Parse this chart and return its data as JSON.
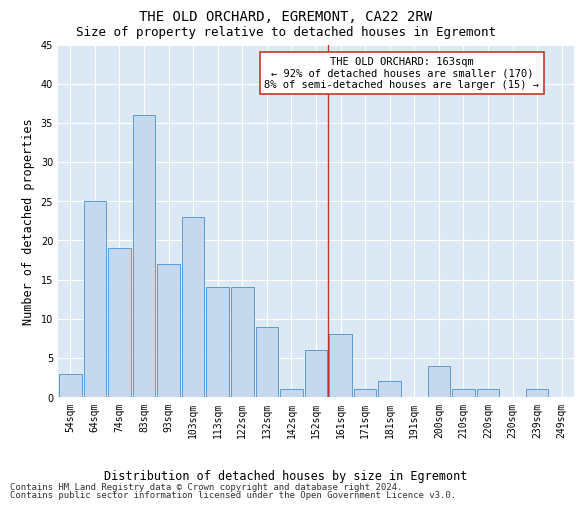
{
  "title": "THE OLD ORCHARD, EGREMONT, CA22 2RW",
  "subtitle": "Size of property relative to detached houses in Egremont",
  "xlabel": "Distribution of detached houses by size in Egremont",
  "ylabel": "Number of detached properties",
  "categories": [
    "54sqm",
    "64sqm",
    "74sqm",
    "83sqm",
    "93sqm",
    "103sqm",
    "113sqm",
    "122sqm",
    "132sqm",
    "142sqm",
    "152sqm",
    "161sqm",
    "171sqm",
    "181sqm",
    "191sqm",
    "200sqm",
    "210sqm",
    "220sqm",
    "230sqm",
    "239sqm",
    "249sqm"
  ],
  "values": [
    3,
    25,
    19,
    36,
    17,
    23,
    14,
    14,
    9,
    1,
    6,
    8,
    1,
    2,
    0,
    4,
    1,
    1,
    0,
    1,
    0
  ],
  "bar_color": "#c5d8ed",
  "bar_edge_color": "#5b9bd5",
  "annotation_line_index": 11,
  "annotation_title": "THE OLD ORCHARD: 163sqm",
  "annotation_line1": "← 92% of detached houses are smaller (170)",
  "annotation_line2": "8% of semi-detached houses are larger (15) →",
  "annotation_box_color": "#c0392b",
  "ylim": [
    0,
    45
  ],
  "yticks": [
    0,
    5,
    10,
    15,
    20,
    25,
    30,
    35,
    40,
    45
  ],
  "footer_line1": "Contains HM Land Registry data © Crown copyright and database right 2024.",
  "footer_line2": "Contains public sector information licensed under the Open Government Licence v3.0.",
  "bg_color": "#dce9f5",
  "grid_color": "#ffffff",
  "title_fontsize": 10,
  "subtitle_fontsize": 9,
  "axis_label_fontsize": 8.5,
  "tick_fontsize": 7,
  "annotation_fontsize": 7.5,
  "footer_fontsize": 6.5
}
